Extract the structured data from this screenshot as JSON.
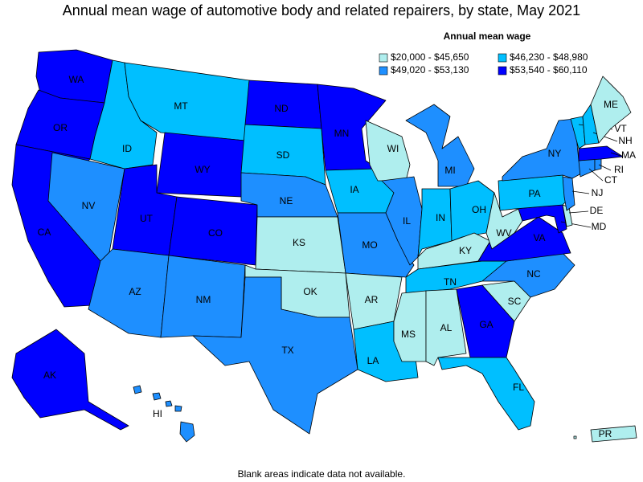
{
  "title": "Annual mean wage of automotive body and related repairers, by state, May 2021",
  "legend": {
    "title": "Annual mean wage",
    "items": [
      {
        "label": "$20,000 - $45,650",
        "color": "#afeeee"
      },
      {
        "label": "$46,230 - $48,980",
        "color": "#00bfff"
      },
      {
        "label": "$49,020 - $53,130",
        "color": "#1e8fff"
      },
      {
        "label": "$53,540 - $60,110",
        "color": "#0000ff"
      }
    ]
  },
  "states": [
    {
      "abbr": "WA",
      "class": 3
    },
    {
      "abbr": "OR",
      "class": 3
    },
    {
      "abbr": "CA",
      "class": 3
    },
    {
      "abbr": "NV",
      "class": 2
    },
    {
      "abbr": "ID",
      "class": 1
    },
    {
      "abbr": "MT",
      "class": 1
    },
    {
      "abbr": "WY",
      "class": 3
    },
    {
      "abbr": "UT",
      "class": 3
    },
    {
      "abbr": "CO",
      "class": 3
    },
    {
      "abbr": "AZ",
      "class": 2
    },
    {
      "abbr": "NM",
      "class": 2
    },
    {
      "abbr": "ND",
      "class": 3
    },
    {
      "abbr": "SD",
      "class": 1
    },
    {
      "abbr": "NE",
      "class": 2
    },
    {
      "abbr": "KS",
      "class": 0
    },
    {
      "abbr": "OK",
      "class": 0
    },
    {
      "abbr": "TX",
      "class": 2
    },
    {
      "abbr": "MN",
      "class": 3
    },
    {
      "abbr": "IA",
      "class": 1
    },
    {
      "abbr": "MO",
      "class": 2
    },
    {
      "abbr": "AR",
      "class": 0
    },
    {
      "abbr": "LA",
      "class": 1
    },
    {
      "abbr": "WI",
      "class": 0
    },
    {
      "abbr": "IL",
      "class": 2
    },
    {
      "abbr": "MI",
      "class": 2
    },
    {
      "abbr": "IN",
      "class": 1
    },
    {
      "abbr": "OH",
      "class": 1
    },
    {
      "abbr": "KY",
      "class": 0
    },
    {
      "abbr": "TN",
      "class": 1
    },
    {
      "abbr": "MS",
      "class": 0
    },
    {
      "abbr": "AL",
      "class": 0
    },
    {
      "abbr": "GA",
      "class": 3
    },
    {
      "abbr": "FL",
      "class": 1
    },
    {
      "abbr": "SC",
      "class": 0
    },
    {
      "abbr": "NC",
      "class": 2
    },
    {
      "abbr": "VA",
      "class": 3
    },
    {
      "abbr": "WV",
      "class": 0
    },
    {
      "abbr": "MD",
      "class": 3
    },
    {
      "abbr": "DE",
      "class": 0
    },
    {
      "abbr": "PA",
      "class": 1
    },
    {
      "abbr": "NJ",
      "class": 2
    },
    {
      "abbr": "NY",
      "class": 2
    },
    {
      "abbr": "CT",
      "class": 2
    },
    {
      "abbr": "RI",
      "class": 2
    },
    {
      "abbr": "MA",
      "class": 3
    },
    {
      "abbr": "VT",
      "class": 1
    },
    {
      "abbr": "NH",
      "class": 1
    },
    {
      "abbr": "ME",
      "class": 0
    },
    {
      "abbr": "AK",
      "class": 3
    },
    {
      "abbr": "HI",
      "class": 2
    },
    {
      "abbr": "PR",
      "class": 0
    }
  ],
  "footnote": "Blank areas indicate data not available."
}
